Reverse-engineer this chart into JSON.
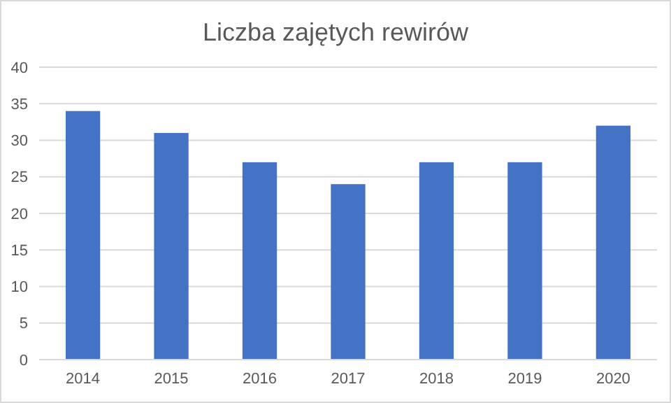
{
  "chart_data": {
    "type": "bar",
    "title": "Liczba zajętych rewirów",
    "categories": [
      "2014",
      "2015",
      "2016",
      "2017",
      "2018",
      "2019",
      "2020"
    ],
    "values": [
      34,
      31,
      27,
      24,
      27,
      27,
      32
    ],
    "color": "#4472c4",
    "ylim": [
      0,
      40
    ],
    "yticks": [
      0,
      5,
      10,
      15,
      20,
      25,
      30,
      35,
      40
    ],
    "grid": "y"
  }
}
